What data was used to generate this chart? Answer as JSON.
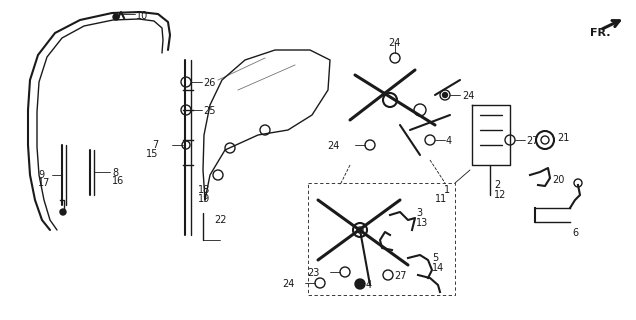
{
  "bg_color": "#ffffff",
  "line_color": "#1a1a1a",
  "fig_width": 6.36,
  "fig_height": 3.2,
  "dpi": 100
}
